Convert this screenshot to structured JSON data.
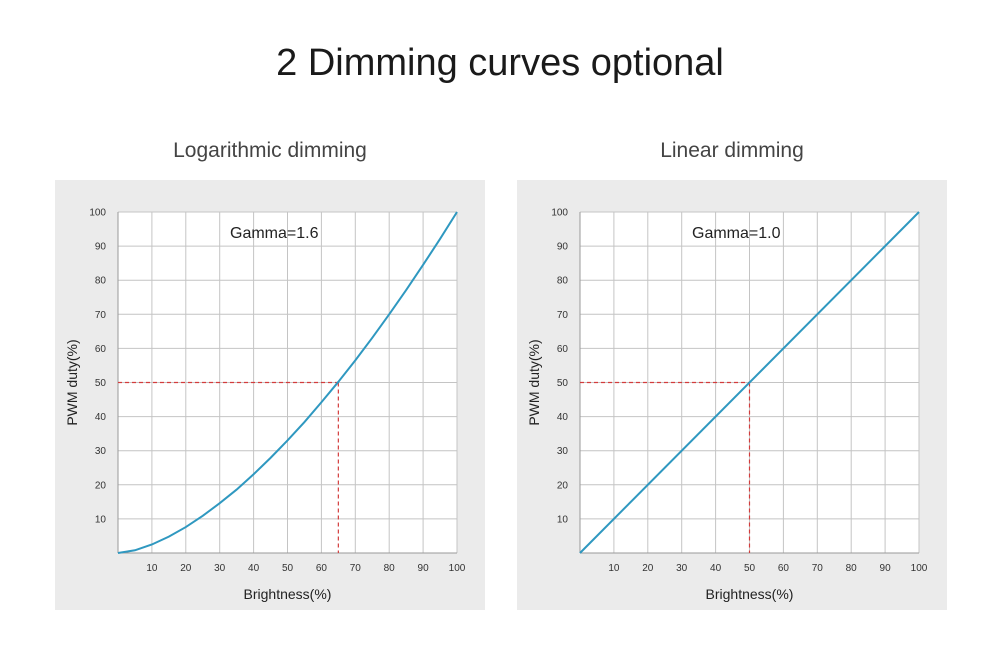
{
  "page": {
    "title": "2 Dimming curves optional"
  },
  "colors": {
    "panel_bg": "#ebebeb",
    "plot_bg": "#ffffff",
    "grid": "#c4c4c4",
    "curve": "#2f98c0",
    "reference": "#d33c3c"
  },
  "chart_data": [
    {
      "type": "line",
      "title": "Logarithmic dimming",
      "annotation": "Gamma=1.6",
      "xlabel": "Brightness(%)",
      "ylabel": "PWM duty(%)",
      "xlim": [
        0,
        100
      ],
      "ylim": [
        0,
        100
      ],
      "xticks": [
        10,
        20,
        30,
        40,
        50,
        60,
        70,
        80,
        90,
        100
      ],
      "yticks": [
        10,
        20,
        30,
        40,
        50,
        60,
        70,
        80,
        90,
        100
      ],
      "grid": true,
      "series": [
        {
          "x": [
            0,
            5,
            10,
            15,
            20,
            25,
            30,
            35,
            40,
            45,
            50,
            55,
            60,
            65,
            70,
            75,
            80,
            85,
            90,
            95,
            100
          ],
          "y": [
            0,
            0.8,
            2.5,
            4.8,
            7.6,
            10.9,
            14.6,
            18.6,
            23.1,
            27.9,
            33.0,
            38.4,
            44.2,
            50.2,
            56.5,
            63.1,
            70.0,
            77.1,
            84.5,
            92.1,
            100
          ]
        }
      ],
      "reference": {
        "x": 65,
        "y": 50
      }
    },
    {
      "type": "line",
      "title": "Linear dimming",
      "annotation": "Gamma=1.0",
      "xlabel": "Brightness(%)",
      "ylabel": "PWM duty(%)",
      "xlim": [
        0,
        100
      ],
      "ylim": [
        0,
        100
      ],
      "xticks": [
        10,
        20,
        30,
        40,
        50,
        60,
        70,
        80,
        90,
        100
      ],
      "yticks": [
        10,
        20,
        30,
        40,
        50,
        60,
        70,
        80,
        90,
        100
      ],
      "grid": true,
      "series": [
        {
          "x": [
            0,
            100
          ],
          "y": [
            0,
            100
          ]
        }
      ],
      "reference": {
        "x": 50,
        "y": 50
      }
    }
  ]
}
